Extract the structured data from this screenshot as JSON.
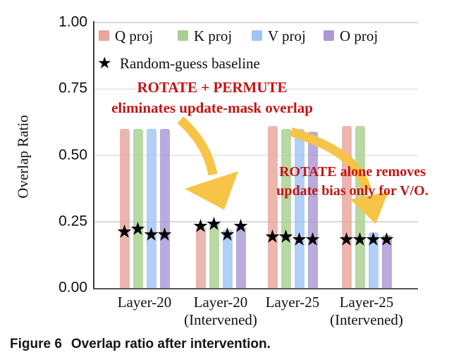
{
  "figure": {
    "caption_label": "Figure 6",
    "caption_text": "Overlap ratio after intervention."
  },
  "chart_data": {
    "type": "bar",
    "title": "",
    "xlabel": "",
    "ylabel": "Overlap Ratio",
    "ylim": [
      0.0,
      1.0
    ],
    "grid": true,
    "legend_position": "top-left-inside",
    "yticks": [
      {
        "label": "1.00",
        "value": 1.0
      },
      {
        "label": "0.75",
        "value": 0.75
      },
      {
        "label": "0.50",
        "value": 0.5
      },
      {
        "label": "0.25",
        "value": 0.25
      },
      {
        "label": "0.00",
        "value": 0.0
      }
    ],
    "categories": [
      {
        "line1": "Layer-20",
        "line2": ""
      },
      {
        "line1": "Layer-20",
        "line2": "(Intervened)"
      },
      {
        "line1": "Layer-25",
        "line2": ""
      },
      {
        "line1": "Layer-25",
        "line2": "(Intervened)"
      }
    ],
    "series": [
      {
        "name": "Q proj",
        "color": "#e8a69d",
        "values": [
          0.6,
          0.23,
          0.61,
          0.61
        ]
      },
      {
        "name": "K proj",
        "color": "#a8d090",
        "values": [
          0.6,
          0.25,
          0.6,
          0.61
        ]
      },
      {
        "name": "V proj",
        "color": "#a0c4f5",
        "values": [
          0.6,
          0.22,
          0.6,
          0.21
        ]
      },
      {
        "name": "O proj",
        "color": "#aa99d4",
        "values": [
          0.6,
          0.23,
          0.59,
          0.2
        ]
      }
    ],
    "baseline": {
      "name": "Random-guess baseline",
      "marker": "★",
      "marker_color": "#000000",
      "values_per_group": [
        [
          0.21,
          0.22,
          0.2,
          0.2
        ],
        [
          0.23,
          0.24,
          0.2,
          0.23
        ],
        [
          0.19,
          0.19,
          0.18,
          0.18
        ],
        [
          0.18,
          0.18,
          0.18,
          0.18
        ]
      ]
    },
    "annotations": [
      {
        "lines": [
          "ROTATE + PERMUTE",
          "eliminates update-mask overlap"
        ],
        "color": "#c41414"
      },
      {
        "lines": [
          "ROTATE alone removes",
          "update bias only for V/O."
        ],
        "color": "#c41414"
      }
    ],
    "arrow_color": "#f8c447"
  }
}
